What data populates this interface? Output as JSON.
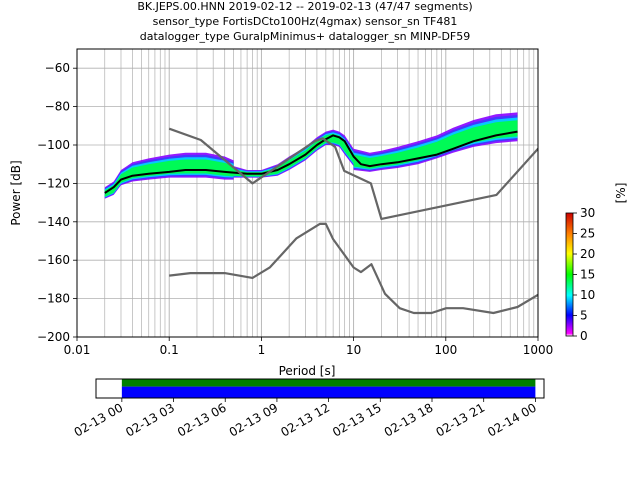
{
  "title_lines": [
    "BK.JEPS.00.HNN   2019-02-12 -- 2019-02-13  (47/47 segments)",
    "sensor_type FortisDCto100Hz(4gmax) sensor_sn TF481",
    "datalogger_type GuralpMinimus+ datalogger_sn MINP-DF59"
  ],
  "colorbar": {
    "label": "[%]",
    "ticks": [
      "0",
      "5",
      "10",
      "15",
      "20",
      "25",
      "30"
    ],
    "range": [
      0,
      30
    ]
  },
  "chart_data": [
    {
      "type": "heatmap",
      "title": "BK.JEPS.00.HNN   2019-02-12 -- 2019-02-13  (47/47 segments)",
      "xlabel": "Period [s]",
      "ylabel": "Power [dB]",
      "xscale": "log",
      "xlim": [
        0.01,
        1000
      ],
      "ylim": [
        -200,
        -50
      ],
      "x_ticks": [
        "0.01",
        "0.1",
        "1",
        "10",
        "100",
        "1000"
      ],
      "y_ticks": [
        "−200",
        "−180",
        "−160",
        "−140",
        "−120",
        "−100",
        "−80",
        "−60"
      ],
      "grid": true,
      "series": [
        {
          "role": "mode",
          "color": "#000000",
          "x": [
            0.02,
            0.025,
            0.03,
            0.04,
            0.06,
            0.1,
            0.15,
            0.25,
            0.4,
            0.7,
            1.0,
            1.5,
            2.0,
            3.0,
            4.0,
            5.0,
            6.0,
            7.0,
            8.0,
            10.0,
            12.0,
            15.0,
            20.0,
            30.0,
            50.0,
            80.0,
            120.0,
            200.0,
            350.0,
            600.0
          ],
          "y": [
            -125,
            -122,
            -118,
            -116,
            -115,
            -114,
            -113,
            -113,
            -114,
            -115,
            -115,
            -113,
            -110,
            -105,
            -100,
            -97,
            -95,
            -96,
            -98,
            -106,
            -110,
            -111,
            -110,
            -109,
            -107,
            -105,
            -102,
            -98,
            -95,
            -93
          ]
        },
        {
          "role": "NHNM",
          "color": "#666666",
          "x": [
            0.1,
            0.22,
            0.8,
            3.8,
            4.6,
            6.3,
            7.9,
            15.4,
            20.0,
            354.8,
            10000
          ],
          "y": [
            -91.5,
            -97.4,
            -120,
            -98,
            -96.5,
            -101,
            -113.5,
            -120,
            -138.5,
            -126,
            -48.5
          ]
        },
        {
          "role": "NLNM",
          "color": "#666666",
          "x": [
            0.1,
            0.17,
            0.4,
            0.8,
            1.24,
            2.4,
            4.3,
            5.0,
            6.0,
            10.0,
            12.0,
            15.6,
            21.9,
            31.6,
            45.0,
            70.0,
            101,
            154,
            328,
            600,
            1000
          ],
          "y": [
            -168,
            -166.7,
            -166.7,
            -169.2,
            -163.7,
            -148.6,
            -141.1,
            -141.1,
            -149,
            -163.8,
            -166.2,
            -162.1,
            -177.5,
            -185,
            -187.5,
            -187.5,
            -185,
            -185,
            -187.5,
            -184.4,
            -178
          ]
        }
      ],
      "density_bands": [
        {
          "x": [
            0.02,
            0.025,
            0.03,
            0.04,
            0.06,
            0.1,
            0.15,
            0.25,
            0.4,
            0.5
          ],
          "y_low": [
            -128,
            -126,
            -121,
            -119,
            -118,
            -117,
            -117,
            -117,
            -118,
            -118
          ],
          "y_high": [
            -122,
            -119,
            -113,
            -109,
            -107,
            -105,
            -104,
            -104,
            -106,
            -108
          ]
        },
        {
          "x": [
            0.5,
            0.7,
            1.0,
            1.5,
            2.0,
            3.0,
            4.0,
            5.0,
            6.0,
            7.0,
            8.0,
            10.0
          ],
          "y_low": [
            -117,
            -117,
            -117,
            -116,
            -113,
            -108,
            -103,
            -100,
            -100,
            -101,
            -105,
            -111
          ],
          "y_high": [
            -111,
            -113,
            -113,
            -110,
            -106,
            -101,
            -96,
            -93,
            -92,
            -93,
            -95,
            -102
          ]
        },
        {
          "x": [
            10.0,
            15.0,
            20.0,
            30.0,
            50.0,
            80.0,
            120.0,
            200.0,
            350.0,
            600.0
          ],
          "y_low": [
            -113,
            -114,
            -113,
            -112,
            -110,
            -107,
            -104,
            -101,
            -99,
            -98
          ],
          "y_high": [
            -102,
            -104,
            -103,
            -101,
            -98,
            -95,
            -91,
            -87,
            -84,
            -83
          ]
        }
      ]
    },
    {
      "type": "bar",
      "role": "data availability",
      "x_ticks": [
        "02-13 00",
        "02-13 03",
        "02-13 06",
        "02-13 09",
        "02-13 12",
        "02-13 15",
        "02-13 18",
        "02-13 21",
        "02-14 00"
      ],
      "xlim_hours": [
        -1.5,
        24.5
      ],
      "segments_hours": [
        [
          0,
          24
        ]
      ],
      "colors": {
        "top": "#008000",
        "bottom": "#0000ff"
      }
    }
  ]
}
